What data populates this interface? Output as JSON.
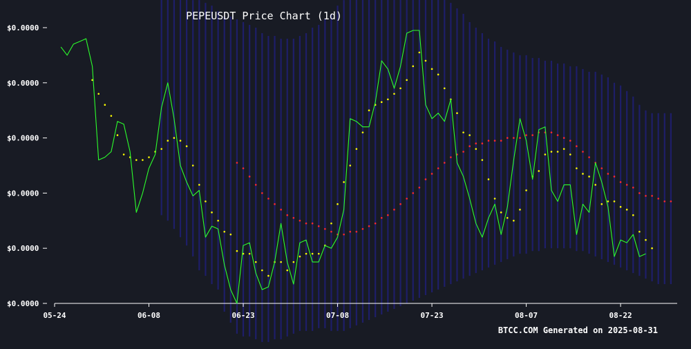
{
  "chart_data": {
    "type": "line",
    "title": "PEPEUSDT Price Chart (1d)",
    "xlabel": "",
    "ylabel": "",
    "x_tick_labels": [
      "05-24",
      "06-08",
      "06-23",
      "07-08",
      "07-23",
      "08-07",
      "08-22"
    ],
    "y_tick_labels": [
      "$0.0000",
      "$0.0000",
      "$0.0000",
      "$0.0000",
      "$0.0000",
      "$0.0000"
    ],
    "x_range": [
      "2025-05-24",
      "2025-08-31"
    ],
    "ylim": [
      0,
      100
    ],
    "legend": "none",
    "grid": false,
    "footer": "BTCC.COM Generated on 2025-08-31",
    "colors": {
      "background": "#181b24",
      "price": "#2cff2c",
      "ma_short": "#ffff00",
      "ma_long": "#ff2a2a",
      "band": "#1f1f6e",
      "axis": "#ffffff"
    },
    "series": [
      {
        "key": "price",
        "style": "line",
        "start": "2025-05-25",
        "values": [
          93,
          90,
          94,
          95,
          96,
          86,
          52,
          53,
          55,
          66,
          65,
          55,
          33,
          40,
          49,
          54,
          71,
          80,
          67,
          50,
          44,
          39,
          41,
          24,
          28,
          27,
          14,
          5,
          0,
          21,
          22,
          11,
          5,
          6,
          15,
          29,
          15,
          7,
          22,
          23,
          15,
          15,
          21,
          20,
          24,
          34,
          67,
          66,
          64,
          64,
          73,
          88,
          85,
          78,
          86,
          98,
          99,
          99,
          72,
          67,
          69,
          66,
          74,
          51,
          46,
          38,
          29,
          24,
          31,
          36,
          25,
          35,
          52,
          67,
          59,
          45,
          63,
          64,
          41,
          37,
          43,
          43,
          25,
          36,
          33,
          51,
          44,
          35,
          17,
          23,
          22,
          25,
          17,
          18
        ]
      },
      {
        "key": "ma_short",
        "style": "dots",
        "start": "2025-05-30",
        "values": [
          81,
          76,
          72,
          68,
          61,
          54,
          53,
          52,
          52,
          53,
          55,
          56,
          59,
          60,
          59,
          57,
          50,
          43,
          37,
          33,
          30,
          26,
          25,
          19,
          18,
          18,
          15,
          12,
          10,
          15,
          15,
          12,
          15,
          17,
          18,
          18,
          18,
          21,
          29,
          36,
          44,
          50,
          56,
          62,
          70,
          72,
          73,
          74,
          76,
          78,
          81,
          86,
          91,
          88,
          85,
          83,
          78,
          74,
          69,
          62,
          61,
          56,
          52,
          45,
          38,
          33,
          31,
          30,
          34,
          41,
          46,
          48,
          54,
          55,
          55,
          56,
          54,
          49,
          47,
          46,
          43,
          36,
          37,
          37,
          35,
          34,
          32,
          26,
          23,
          20
        ]
      },
      {
        "key": "ma_long",
        "style": "dots",
        "start": "2025-06-22",
        "values": [
          51,
          49,
          46,
          43,
          40,
          38,
          36,
          34,
          32,
          31,
          30,
          29,
          29,
          28,
          27,
          26,
          25,
          25,
          26,
          26,
          27,
          28,
          29,
          31,
          32,
          34,
          36,
          38,
          40,
          42,
          45,
          47,
          49,
          51,
          53,
          54,
          55,
          57,
          58,
          58,
          59,
          59,
          59,
          60,
          60,
          60,
          61,
          61,
          62,
          62,
          62,
          61,
          60,
          59,
          57,
          55,
          53,
          51,
          49,
          47,
          46,
          44,
          43,
          42,
          40,
          39,
          39,
          38,
          37,
          37
        ]
      }
    ],
    "band": {
      "start": "2025-06-10",
      "upper": [
        115,
        114,
        113,
        112,
        111,
        110,
        110,
        109,
        108,
        106,
        104,
        104,
        103,
        102,
        101,
        100,
        98,
        97,
        97,
        96,
        96,
        96,
        97,
        98,
        100,
        101,
        103,
        105,
        108,
        110,
        111,
        113,
        114,
        115,
        115,
        116,
        117,
        118,
        118,
        118,
        117,
        117,
        116,
        114,
        112,
        111,
        109,
        107,
        105,
        102,
        100,
        98,
        96,
        95,
        93,
        92,
        91,
        90,
        90,
        89,
        89,
        88,
        88,
        87,
        87,
        86,
        86,
        85,
        84,
        84,
        83,
        82,
        80,
        79,
        77,
        75,
        72,
        70,
        69,
        69,
        69,
        69
      ],
      "lower": [
        32,
        30,
        27,
        24,
        21,
        17,
        12,
        10,
        7,
        5,
        -3,
        -7,
        -11,
        -12,
        -12,
        -13,
        -14,
        -14,
        -13,
        -13,
        -12,
        -11,
        -10,
        -10,
        -10,
        -9,
        -9,
        -10,
        -10,
        -10,
        -9,
        -8,
        -7,
        -6,
        -5,
        -4,
        -3,
        -2,
        -1,
        0,
        1,
        2,
        3,
        4,
        5,
        6,
        7,
        8,
        9,
        10,
        11,
        12,
        13,
        14,
        15,
        16,
        17,
        18,
        18,
        19,
        19,
        20,
        20,
        20,
        20,
        20,
        19,
        19,
        18,
        17,
        16,
        15,
        14,
        13,
        12,
        11,
        10,
        9,
        8,
        7,
        7,
        7
      ]
    }
  }
}
